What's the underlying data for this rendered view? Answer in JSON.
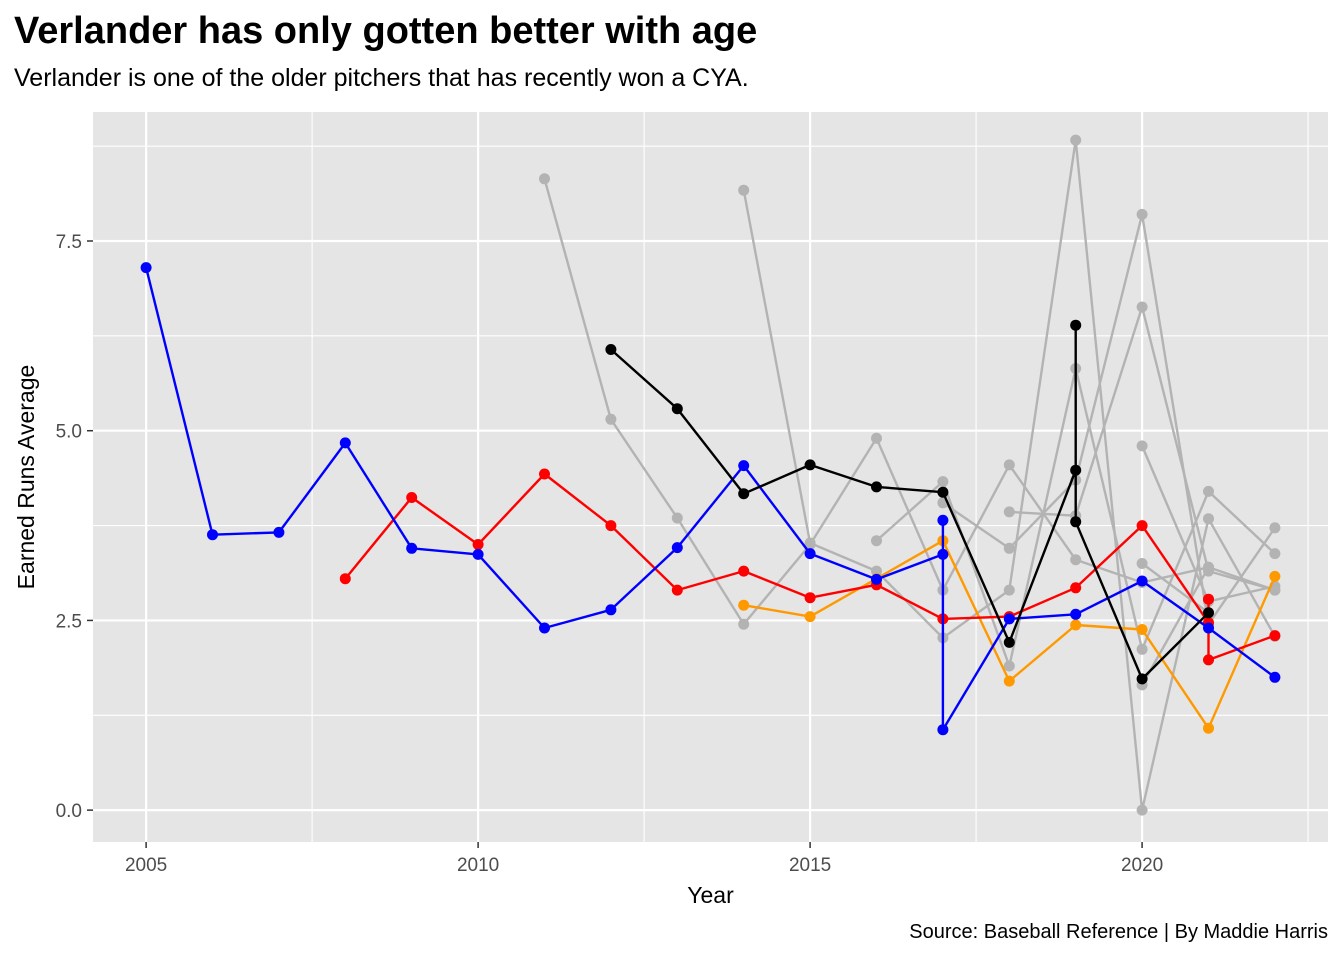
{
  "chart_data": {
    "type": "line",
    "title": "Verlander has only gotten better with age",
    "subtitle": "Verlander is one of the older pitchers that has recently won a CYA.",
    "caption": "Source: Baseball Reference | By Maddie Harris",
    "xlabel": "Year",
    "ylabel": "Earned Runs Average",
    "xlim": [
      2004.2,
      2022.8
    ],
    "ylim": [
      -0.42,
      9.2
    ],
    "x_ticks": [
      2005,
      2010,
      2015,
      2020
    ],
    "x_tick_labels": [
      "2005",
      "2010",
      "2015",
      "2020"
    ],
    "y_ticks": [
      0,
      2.5,
      5,
      7.5
    ],
    "y_tick_labels": [
      "0.0",
      "2.5",
      "5.0",
      "7.5"
    ],
    "grid": true,
    "legend": "none",
    "background": "#e5e5e5",
    "grid_color": "#ffffff",
    "series": [
      {
        "color": "#b3b3b3",
        "x": [
          2011,
          2012,
          2013,
          2014,
          2015,
          2016,
          2017,
          2018,
          2019,
          2020,
          2021,
          2022
        ],
        "y": [
          8.32,
          5.15,
          3.85,
          2.45,
          3.5,
          4.9,
          2.9,
          4.55,
          3.3,
          3.0,
          3.2,
          2.9
        ]
      },
      {
        "color": "#b3b3b3",
        "x": [
          2014,
          2015,
          2016,
          2017,
          2018,
          2019,
          2020,
          2021,
          2022
        ],
        "y": [
          8.17,
          3.52,
          3.15,
          2.27,
          2.9,
          8.83,
          0.0,
          3.84,
          2.29
        ]
      },
      {
        "color": "#b3b3b3",
        "x": [
          2016,
          2017,
          2018,
          2019,
          2020,
          2021,
          2022
        ],
        "y": [
          3.55,
          4.33,
          1.9,
          5.82,
          2.12,
          4.2,
          3.38
        ]
      },
      {
        "color": "#b3b3b3",
        "x": [
          2017,
          2018,
          2019,
          2020,
          2021,
          2022
        ],
        "y": [
          4.05,
          3.45,
          4.35,
          7.85,
          2.45,
          3.72
        ]
      },
      {
        "color": "#b3b3b3",
        "x": [
          2018,
          2019,
          2020,
          2021,
          2022
        ],
        "y": [
          3.93,
          3.88,
          6.63,
          3.15,
          2.9
        ]
      },
      {
        "color": "#b3b3b3",
        "x": [
          2020,
          2021,
          2022
        ],
        "y": [
          4.8,
          2.75,
          2.95
        ]
      },
      {
        "color": "#b3b3b3",
        "x": [
          2020,
          2021
        ],
        "y": [
          3.25,
          2.6
        ]
      },
      {
        "color": "#b3b3b3",
        "x": [
          2020,
          2021
        ],
        "y": [
          1.65,
          3.2
        ]
      },
      {
        "color": "#ff9900",
        "x": [
          2014,
          2015,
          2016,
          2017,
          2018,
          2019,
          2020,
          2021,
          2022
        ],
        "y": [
          2.7,
          2.55,
          3.05,
          3.55,
          1.7,
          2.44,
          2.38,
          1.08,
          3.08
        ]
      },
      {
        "color": "#ff0000",
        "x": [
          2008,
          2009,
          2010,
          2011,
          2012,
          2013,
          2014,
          2015,
          2016,
          2017,
          2018,
          2019,
          2020,
          2021,
          2021,
          2021,
          2022
        ],
        "y": [
          3.05,
          4.12,
          3.5,
          4.43,
          3.75,
          2.9,
          3.15,
          2.8,
          2.97,
          2.52,
          2.55,
          2.93,
          3.75,
          2.47,
          2.78,
          1.98,
          2.3
        ]
      },
      {
        "color": "#0000ff",
        "x": [
          2005,
          2006,
          2007,
          2008,
          2009,
          2010,
          2011,
          2012,
          2013,
          2014,
          2015,
          2016,
          2017,
          2017,
          2017,
          2018,
          2019,
          2020,
          2021,
          2022
        ],
        "y": [
          7.15,
          3.63,
          3.66,
          4.84,
          3.45,
          3.37,
          2.4,
          2.64,
          3.46,
          4.54,
          3.38,
          3.04,
          3.37,
          3.82,
          1.06,
          2.52,
          2.58,
          3.02,
          2.4,
          1.75
        ]
      },
      {
        "color": "#000000",
        "x": [
          2012,
          2013,
          2014,
          2015,
          2016,
          2017,
          2018,
          2019,
          2019,
          2019,
          2020,
          2021
        ],
        "y": [
          6.07,
          5.29,
          4.17,
          4.55,
          4.26,
          4.19,
          2.21,
          4.48,
          6.39,
          3.8,
          1.73,
          2.6
        ]
      }
    ]
  }
}
